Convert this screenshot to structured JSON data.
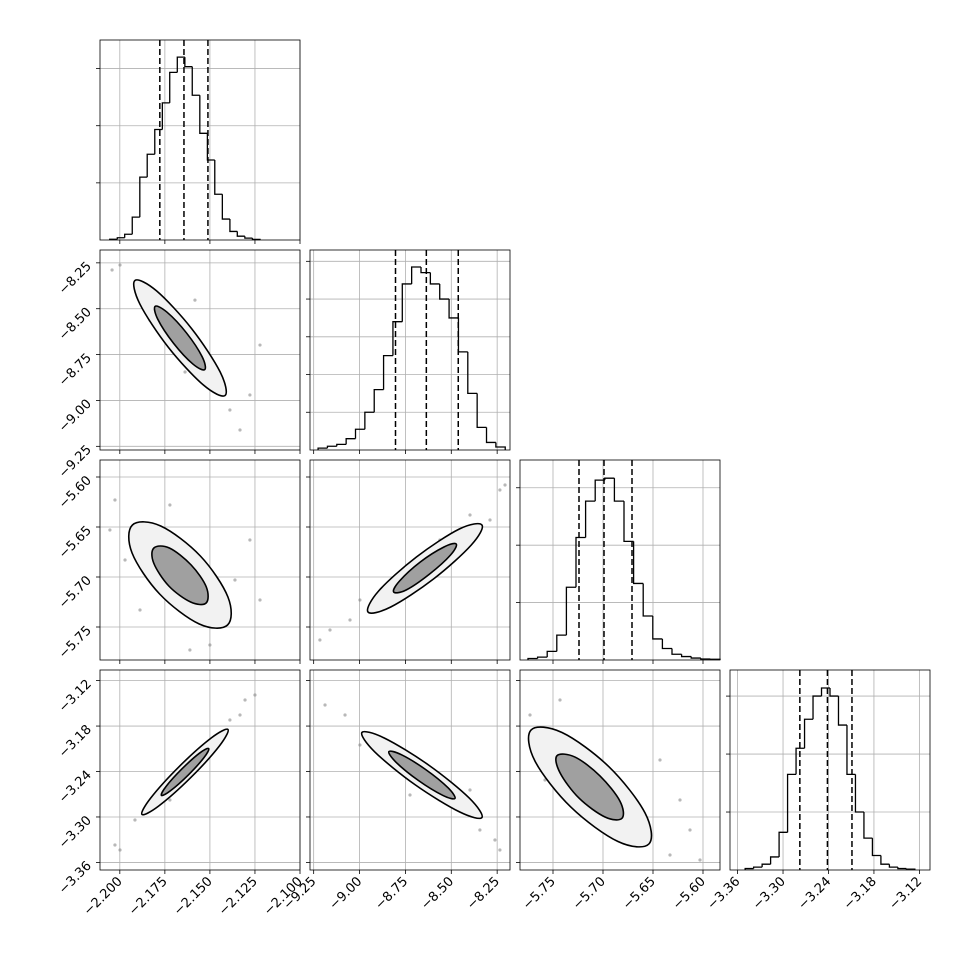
{
  "chart_data": {
    "type": "corner",
    "grid": true,
    "line_color": "#000000",
    "scatter_color": "#888888",
    "contour_fills": [
      "#f2f2f2",
      "#a0a0a0"
    ],
    "parameters": [
      {
        "xlim": [
          -2.211,
          -2.1
        ],
        "ticks": [
          {
            "value": -2.2,
            "label": "−2.200"
          },
          {
            "value": -2.175,
            "label": "−2.175"
          },
          {
            "value": -2.15,
            "label": "−2.150"
          },
          {
            "value": -2.125,
            "label": "−2.125"
          },
          {
            "value": -2.1,
            "label": "−2.100"
          }
        ],
        "quantiles": [
          -2.1778,
          -2.1644,
          -2.1511
        ],
        "hist": {
          "bins": [
            -2.2056,
            -2.2014,
            -2.1973,
            -2.1931,
            -2.1889,
            -2.1848,
            -2.1806,
            -2.1764,
            -2.1723,
            -2.1681,
            -2.1639,
            -2.1598,
            -2.1556,
            -2.1514,
            -2.1473,
            -2.1431,
            -2.1389,
            -2.1348,
            -2.1306,
            -2.1264,
            -2.1222
          ],
          "counts": [
            4,
            12,
            30,
            120,
            330,
            450,
            580,
            720,
            880,
            960,
            910,
            760,
            560,
            420,
            240,
            110,
            45,
            20,
            10,
            3
          ],
          "ylim": [
            0,
            1050
          ],
          "yticks": [
            300,
            600,
            900
          ]
        }
      },
      {
        "xlim": [
          -9.27,
          -8.18
        ],
        "ticks": [
          {
            "value": -9.25,
            "label": "−9.25"
          },
          {
            "value": -9,
            "label": "−9.00"
          },
          {
            "value": -8.75,
            "label": "−8.75"
          },
          {
            "value": -8.5,
            "label": "−8.50"
          },
          {
            "value": -8.25,
            "label": "−8.25"
          }
        ],
        "quantiles": [
          -8.804,
          -8.636,
          -8.462
        ],
        "hist": {
          "bins": [
            -9.226,
            -9.175,
            -9.124,
            -9.073,
            -9.022,
            -8.971,
            -8.92,
            -8.869,
            -8.818,
            -8.767,
            -8.716,
            -8.665,
            -8.614,
            -8.563,
            -8.512,
            -8.461,
            -8.41,
            -8.359,
            -8.308,
            -8.257,
            -8.206
          ],
          "counts": [
            5,
            10,
            15,
            30,
            55,
            100,
            160,
            250,
            340,
            440,
            485,
            470,
            440,
            400,
            350,
            260,
            150,
            60,
            20,
            8
          ],
          "ylim": [
            0,
            530
          ],
          "yticks": [
            100,
            200,
            300,
            400,
            500
          ]
        }
      },
      {
        "xlim": [
          -5.783,
          -5.583
        ],
        "ticks": [
          {
            "value": -5.75,
            "label": "−5.75"
          },
          {
            "value": -5.7,
            "label": "−5.70"
          },
          {
            "value": -5.65,
            "label": "−5.65"
          },
          {
            "value": -5.6,
            "label": "−5.60"
          }
        ],
        "quantiles": [
          -5.724,
          -5.699,
          -5.671
        ],
        "hist": {
          "bins": [
            -5.775,
            -5.7654,
            -5.7558,
            -5.7462,
            -5.7366,
            -5.727,
            -5.7174,
            -5.7078,
            -5.6982,
            -5.6886,
            -5.679,
            -5.6694,
            -5.6598,
            -5.6502,
            -5.6406,
            -5.631,
            -5.6214,
            -5.6118,
            -5.6022,
            -5.5926,
            -5.583
          ],
          "counts": [
            8,
            15,
            45,
            130,
            380,
            640,
            830,
            940,
            950,
            830,
            620,
            400,
            230,
            110,
            60,
            30,
            18,
            10,
            5,
            4
          ],
          "ylim": [
            0,
            1045
          ],
          "yticks": [
            300,
            600,
            900
          ]
        }
      },
      {
        "xlim": [
          -3.37,
          -3.106
        ],
        "ticks": [
          {
            "value": -3.36,
            "label": "−3.36"
          },
          {
            "value": -3.3,
            "label": "−3.30"
          },
          {
            "value": -3.24,
            "label": "−3.24"
          },
          {
            "value": -3.18,
            "label": "−3.18"
          },
          {
            "value": -3.12,
            "label": "−3.12"
          }
        ],
        "quantiles": [
          -3.2778,
          -3.2414,
          -3.209
        ],
        "hist": {
          "bins": [
            -3.35,
            -3.3388,
            -3.3276,
            -3.3164,
            -3.3052,
            -3.294,
            -3.2828,
            -3.2716,
            -3.2604,
            -3.2492,
            -3.238,
            -3.2268,
            -3.2156,
            -3.2044,
            -3.1932,
            -3.182,
            -3.1708,
            -3.1596,
            -3.1484,
            -3.1372,
            -3.126
          ],
          "counts": [
            5,
            10,
            20,
            45,
            130,
            330,
            420,
            520,
            600,
            628,
            600,
            500,
            330,
            200,
            110,
            50,
            20,
            10,
            5,
            3
          ],
          "ylim": [
            0,
            690
          ],
          "yticks": [
            200,
            400,
            600
          ]
        }
      }
    ],
    "pairs": [
      [
        {
          "contours": [
            {
              "x": [
                -2.1416,
                -2.1536,
                -2.1731,
                -2.1889,
                -2.1916,
                -2.1796,
                -2.1601,
                -2.1443
              ],
              "y": [
                -8.973,
                -8.916,
                -8.71,
                -8.474,
                -8.346,
                -8.403,
                -8.609,
                -8.845
              ]
            },
            {
              "x": [
                -2.1529,
                -2.1595,
                -2.1702,
                -2.1789,
                -2.1804,
                -2.1738,
                -2.163,
                -2.1543
              ],
              "y": [
                -8.832,
                -8.801,
                -8.688,
                -8.558,
                -8.487,
                -8.519,
                -8.632,
                -8.762
              ]
            }
          ],
          "scatter": {
            "x": [
              -2.1999,
              -2.1833,
              -2.1527,
              -2.1389,
              -2.1333,
              -2.2043,
              -2.1583,
              -2.1222,
              -2.1638,
              -2.1278
            ],
            "y": [
              -8.262,
              -8.562,
              -8.752,
              -9.052,
              -9.161,
              -8.289,
              -8.453,
              -8.698,
              -8.845,
              -8.97
            ]
          }
        }
      ],
      [
        {
          "contours": [
            {
              "x": [
                -2.1402,
                -2.1559,
                -2.1779,
                -2.1932,
                -2.193,
                -2.1773,
                -2.1553,
                -2.14
              ],
              "y": [
                -5.748,
                -5.747,
                -5.717,
                -5.676,
                -5.648,
                -5.649,
                -5.679,
                -5.72
              ]
            },
            {
              "x": [
                -2.1521,
                -2.1607,
                -2.1728,
                -2.1812,
                -2.1811,
                -2.1725,
                -2.1604,
                -2.152
              ],
              "y": [
                -5.726,
                -5.725,
                -5.709,
                -5.686,
                -5.671,
                -5.671,
                -5.688,
                -5.71
              ]
            }
          ],
          "scatter": {
            "x": [
              -2.2027,
              -2.1888,
              -2.1278,
              -2.15,
              -2.1971,
              -2.1361,
              -2.1722,
              -2.1611,
              -2.2055,
              -2.1222
            ],
            "y": [
              -5.623,
              -5.733,
              -5.663,
              -5.768,
              -5.683,
              -5.703,
              -5.628,
              -5.773,
              -5.653,
              -5.723
            ]
          }
        },
        {
          "contours": [
            {
              "x": [
                -8.333,
                -8.391,
                -8.597,
                -8.83,
                -8.954,
                -8.896,
                -8.69,
                -8.456
              ],
              "y": [
                -5.648,
                -5.668,
                -5.702,
                -5.73,
                -5.735,
                -5.714,
                -5.68,
                -5.652
              ]
            },
            {
              "x": [
                -8.473,
                -8.504,
                -8.618,
                -8.746,
                -8.814,
                -8.782,
                -8.669,
                -8.54
              ],
              "y": [
                -5.667,
                -5.678,
                -5.697,
                -5.713,
                -5.715,
                -5.704,
                -5.685,
                -5.67
              ]
            }
          ],
          "scatter": {
            "x": [
              -9.161,
              -9.052,
              -8.235,
              -8.207,
              -8.398,
              -8.78,
              -8.998,
              -8.562,
              -8.289,
              -9.216
            ],
            "y": [
              -5.753,
              -5.743,
              -5.613,
              -5.608,
              -5.638,
              -5.703,
              -5.723,
              -5.663,
              -5.643,
              -5.763
            ]
          }
        }
      ],
      [
        {
          "contours": [
            {
              "x": [
                -2.14,
                -2.1447,
                -2.1607,
                -2.1785,
                -2.1877,
                -2.1829,
                -2.1669,
                -2.1492
              ],
              "y": [
                -3.1845,
                -3.2062,
                -3.2482,
                -3.2857,
                -3.2967,
                -3.2751,
                -3.2331,
                -3.1956
              ]
            },
            {
              "x": [
                -2.1507,
                -2.1533,
                -2.1621,
                -2.1719,
                -2.1769,
                -2.1743,
                -2.1655,
                -2.1558
              ],
              "y": [
                -3.2097,
                -3.2217,
                -3.2448,
                -3.2654,
                -3.2715,
                -3.2596,
                -3.2365,
                -3.2158
              ]
            }
          ],
          "scatter": {
            "x": [
              -2.1999,
              -2.1916,
              -2.1305,
              -2.125,
              -2.1389,
              -2.1555,
              -2.1777,
              -2.2027,
              -2.1333,
              -2.1722
            ],
            "y": [
              -3.3436,
              -3.304,
              -3.1456,
              -3.139,
              -3.172,
              -3.2248,
              -3.2644,
              -3.337,
              -3.1654,
              -3.2776
            ]
          }
        },
        {
          "contours": [
            {
              "x": [
                -8.333,
                -8.455,
                -8.697,
                -8.917,
                -8.987,
                -8.864,
                -8.622,
                -8.402
              ],
              "y": [
                -3.3007,
                -3.2933,
                -3.2575,
                -3.2141,
                -3.1885,
                -3.1959,
                -3.2317,
                -3.2751
              ]
            },
            {
              "x": [
                -8.48,
                -8.547,
                -8.68,
                -8.801,
                -8.84,
                -8.772,
                -8.639,
                -8.518
              ],
              "y": [
                -3.2755,
                -3.2714,
                -3.2517,
                -3.2278,
                -3.2137,
                -3.2178,
                -3.2375,
                -3.2614
              ]
            }
          ],
          "scatter": {
            "x": [
              -9.188,
              -9.079,
              -8.262,
              -8.235,
              -8.344,
              -8.78,
              -8.562,
              -8.998,
              -8.398,
              -8.725
            ],
            "y": [
              -3.1522,
              -3.1654,
              -3.3304,
              -3.3436,
              -3.3172,
              -3.2248,
              -3.2776,
              -3.205,
              -3.2644,
              -3.271
            ]
          }
        },
        {
          "contours": [
            {
              "x": [
                -5.654,
                -5.685,
                -5.732,
                -5.768,
                -5.772,
                -5.741,
                -5.694,
                -5.658
              ],
              "y": [
                -3.3355,
                -3.3324,
                -3.2871,
                -3.2263,
                -3.1853,
                -3.1885,
                -3.2338,
                -3.2946
              ]
            },
            {
              "x": [
                -5.681,
                -5.698,
                -5.724,
                -5.743,
                -5.746,
                -5.728,
                -5.703,
                -5.683
              ],
              "y": [
                -3.3017,
                -3.3,
                -3.2751,
                -3.2416,
                -3.2191,
                -3.2209,
                -3.2458,
                -3.2792
              ]
            }
          ],
          "scatter": {
            "x": [
              -5.773,
              -5.743,
              -5.633,
              -5.613,
              -5.623,
              -5.703,
              -5.678,
              -5.758,
              -5.603,
              -5.643
            ],
            "y": [
              -3.1654,
              -3.1456,
              -3.3502,
              -3.3172,
              -3.2776,
              -3.2248,
              -3.304,
              -3.2512,
              -3.3568,
              -3.2248
            ]
          }
        }
      ]
    ]
  }
}
